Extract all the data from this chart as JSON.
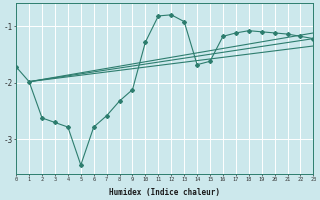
{
  "xlabel": "Humidex (Indice chaleur)",
  "bg_color": "#cce8ec",
  "grid_color": "#ffffff",
  "line_color": "#2d7d6e",
  "x_min": 0,
  "x_max": 23,
  "y_min": -3.6,
  "y_max": -0.6,
  "yticks": [
    -3,
    -2,
    -1
  ],
  "xticks": [
    0,
    1,
    2,
    3,
    4,
    5,
    6,
    7,
    8,
    9,
    10,
    11,
    12,
    13,
    14,
    15,
    16,
    17,
    18,
    19,
    20,
    21,
    22,
    23
  ],
  "curve_x": [
    0,
    1,
    2,
    3,
    4,
    5,
    6,
    7,
    8,
    9,
    10,
    11,
    12,
    13,
    14,
    15,
    16,
    17,
    18,
    19,
    20,
    21,
    22,
    23
  ],
  "curve_y": [
    -1.72,
    -1.98,
    -2.62,
    -2.7,
    -2.78,
    -3.45,
    -2.78,
    -2.58,
    -2.32,
    -2.12,
    -1.28,
    -0.82,
    -0.8,
    -0.92,
    -1.68,
    -1.62,
    -1.18,
    -1.12,
    -1.08,
    -1.1,
    -1.12,
    -1.14,
    -1.18,
    -1.22
  ],
  "line1_x": [
    1,
    23
  ],
  "line1_y": [
    -1.98,
    -1.12
  ],
  "line2_x": [
    1,
    23
  ],
  "line2_y": [
    -1.98,
    -1.22
  ],
  "line3_x": [
    1,
    23
  ],
  "line3_y": [
    -1.98,
    -1.35
  ]
}
